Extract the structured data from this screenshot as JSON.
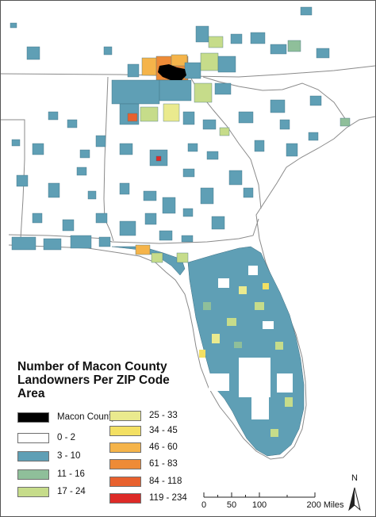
{
  "legend": {
    "title": "Number of Macon County\nLandowners Per ZIP Code\nArea",
    "items": [
      {
        "label": "Macon County",
        "color": "#000000"
      },
      {
        "label": "0 - 2",
        "color": "#ffffff"
      },
      {
        "label": "3 - 10",
        "color": "#5f9fb5"
      },
      {
        "label": "11 - 16",
        "color": "#8fbf9a"
      },
      {
        "label": "17 - 24",
        "color": "#c6dc8a"
      },
      {
        "label": "25 - 33",
        "color": "#eaea8e"
      },
      {
        "label": "34 - 45",
        "color": "#f3e063"
      },
      {
        "label": "46 - 60",
        "color": "#f5b44a"
      },
      {
        "label": "61 - 83",
        "color": "#ee8b37"
      },
      {
        "label": "84 - 118",
        "color": "#e8612e"
      },
      {
        "label": "119 - 234",
        "color": "#dd2a27"
      }
    ]
  },
  "scale": {
    "ticks": [
      "0",
      "50",
      "100",
      "200 Miles"
    ]
  },
  "north_arrow": {
    "label": "N"
  }
}
